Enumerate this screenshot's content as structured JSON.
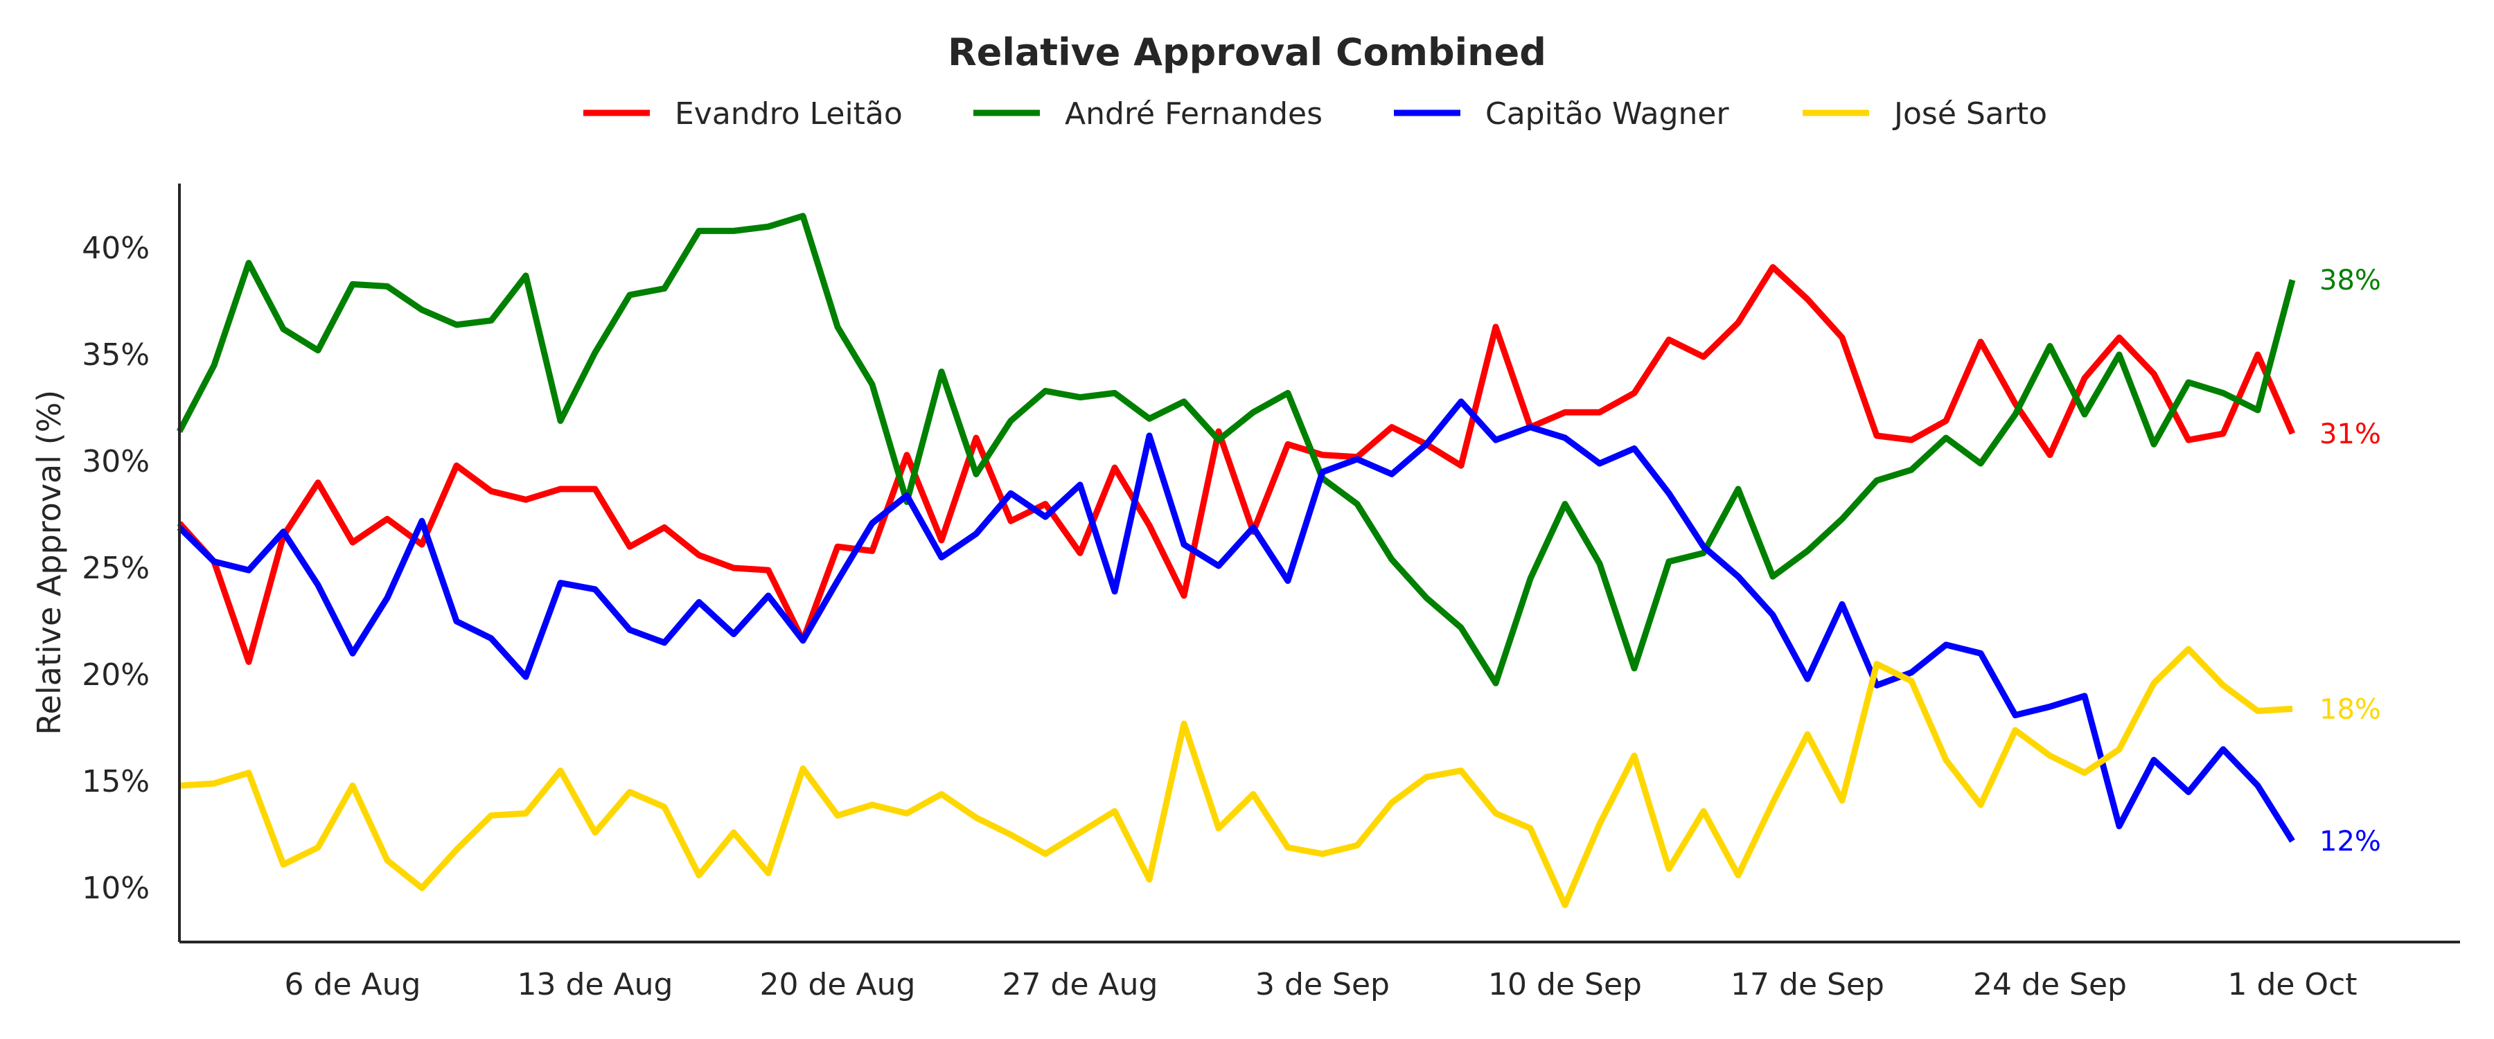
{
  "chart_data": {
    "type": "line",
    "title": "Relative Approval Combined",
    "ylabel": "Relative Approval (%)",
    "xlabel": "",
    "ylim": [
      7.5,
      43.0
    ],
    "grid": false,
    "legend_position": "top-center",
    "x_start": "2024-08-01",
    "x_ticks": [
      {
        "date": "2024-08-06",
        "label": "6 de Aug"
      },
      {
        "date": "2024-08-13",
        "label": "13 de Aug"
      },
      {
        "date": "2024-08-20",
        "label": "20 de Aug"
      },
      {
        "date": "2024-08-27",
        "label": "27 de Aug"
      },
      {
        "date": "2024-09-03",
        "label": "3 de Sep"
      },
      {
        "date": "2024-09-10",
        "label": "10 de Sep"
      },
      {
        "date": "2024-09-17",
        "label": "17 de Sep"
      },
      {
        "date": "2024-09-24",
        "label": "24 de Sep"
      },
      {
        "date": "2024-10-01",
        "label": "1 de Oct"
      }
    ],
    "y_ticks": [
      {
        "value": 10,
        "label": "10%"
      },
      {
        "value": 15,
        "label": "15%"
      },
      {
        "value": 20,
        "label": "20%"
      },
      {
        "value": 25,
        "label": "25%"
      },
      {
        "value": 30,
        "label": "30%"
      },
      {
        "value": 35,
        "label": "35%"
      },
      {
        "value": 40,
        "label": "40%"
      }
    ],
    "series": [
      {
        "name": "Evandro Leitão",
        "color": "#ff0000",
        "end_label": "31%",
        "values": [
          27.1,
          25.3,
          20.6,
          26.5,
          29.0,
          26.2,
          27.3,
          26.1,
          29.8,
          28.6,
          28.2,
          28.7,
          28.7,
          26.0,
          26.9,
          25.6,
          25.0,
          24.9,
          21.6,
          26.0,
          25.8,
          30.3,
          26.3,
          31.1,
          27.2,
          28.0,
          25.7,
          29.7,
          27.0,
          23.7,
          31.4,
          26.7,
          30.8,
          30.3,
          30.2,
          31.6,
          30.8,
          29.8,
          36.3,
          31.6,
          32.3,
          32.3,
          33.2,
          35.7,
          34.9,
          36.5,
          39.1,
          37.6,
          35.8,
          31.2,
          31.0,
          31.9,
          35.6,
          32.7,
          30.3,
          33.9,
          35.8,
          34.1,
          31.0,
          31.3,
          35.0,
          31.3
        ]
      },
      {
        "name": "André Fernandes",
        "color": "#008000",
        "end_label": "38%",
        "values": [
          31.4,
          34.5,
          39.3,
          36.2,
          35.2,
          38.3,
          38.2,
          37.1,
          36.4,
          36.6,
          38.7,
          31.9,
          35.1,
          37.8,
          38.1,
          40.8,
          40.8,
          41.0,
          41.5,
          36.3,
          33.6,
          28.1,
          34.2,
          29.4,
          31.9,
          33.3,
          33.0,
          33.2,
          32.0,
          32.8,
          31.0,
          32.3,
          33.2,
          29.2,
          28.0,
          25.4,
          23.6,
          22.2,
          19.6,
          24.5,
          28.0,
          25.2,
          20.3,
          25.3,
          25.7,
          28.7,
          24.6,
          25.8,
          27.3,
          29.1,
          29.6,
          31.1,
          29.9,
          32.2,
          35.4,
          32.2,
          35.0,
          30.8,
          33.7,
          33.2,
          32.4,
          38.5
        ]
      },
      {
        "name": "Capitão Wagner",
        "color": "#0000ff",
        "end_label": "12%",
        "values": [
          26.9,
          25.3,
          24.9,
          26.7,
          24.2,
          21.0,
          23.6,
          27.2,
          22.5,
          21.7,
          19.9,
          24.3,
          24.0,
          22.1,
          21.5,
          23.4,
          21.9,
          23.7,
          21.6,
          24.4,
          27.1,
          28.4,
          25.5,
          26.6,
          28.5,
          27.4,
          28.9,
          23.9,
          31.2,
          26.1,
          25.1,
          26.9,
          24.4,
          29.5,
          30.1,
          29.4,
          30.8,
          32.8,
          31.0,
          31.6,
          31.1,
          29.9,
          30.6,
          28.5,
          26.0,
          24.6,
          22.8,
          19.8,
          23.3,
          19.5,
          20.1,
          21.4,
          21.0,
          18.1,
          18.5,
          19.0,
          12.9,
          16.0,
          14.5,
          16.5,
          14.8,
          12.2
        ]
      },
      {
        "name": "José Sarto",
        "color": "#ffd700",
        "end_label": "18%",
        "values": [
          14.8,
          14.9,
          15.4,
          11.1,
          11.9,
          14.8,
          11.3,
          10.0,
          11.8,
          13.4,
          13.5,
          15.5,
          12.6,
          14.5,
          13.8,
          10.6,
          12.6,
          10.7,
          15.6,
          13.4,
          13.9,
          13.5,
          14.4,
          13.3,
          12.5,
          11.6,
          12.6,
          13.6,
          10.4,
          17.7,
          12.8,
          14.4,
          11.9,
          11.6,
          12.0,
          14.0,
          15.2,
          15.5,
          13.5,
          12.8,
          9.2,
          13.0,
          16.2,
          10.9,
          13.6,
          10.6,
          14.0,
          17.2,
          14.1,
          20.5,
          19.7,
          16.0,
          13.9,
          17.4,
          16.2,
          15.4,
          16.5,
          19.6,
          21.2,
          19.5,
          18.3,
          18.4
        ]
      }
    ]
  }
}
